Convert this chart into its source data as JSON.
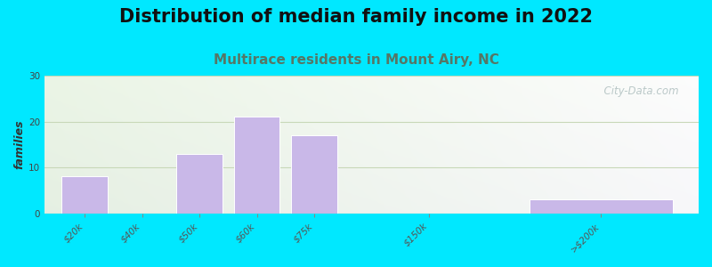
{
  "title": "Distribution of median family income in 2022",
  "subtitle": "Multirace residents in Mount Airy, NC",
  "ylabel": "families",
  "categories": [
    "$20k",
    "$40k",
    "$50k",
    "$60k",
    "$75k",
    "$150k",
    ">$200k"
  ],
  "values": [
    8,
    0,
    13,
    21,
    17,
    0,
    3
  ],
  "bar_color": "#c9b8e8",
  "bar_edge_color": "#ffffff",
  "background_outer": "#00e8ff",
  "ylim": [
    0,
    30
  ],
  "yticks": [
    0,
    10,
    20,
    30
  ],
  "grid_color": "#c8d8b8",
  "title_fontsize": 15,
  "subtitle_fontsize": 11,
  "subtitle_color": "#557766",
  "ylabel_fontsize": 9,
  "tick_label_fontsize": 7.5,
  "bar_positions": [
    1,
    2,
    3,
    4,
    5,
    7,
    10
  ],
  "bar_widths": [
    0.8,
    0.8,
    0.8,
    0.8,
    0.8,
    0.8,
    2.5
  ],
  "watermark": "  City-Data.com",
  "watermark_color": "#b0c0c0",
  "xlim_left": 0.3,
  "xlim_right": 11.7
}
